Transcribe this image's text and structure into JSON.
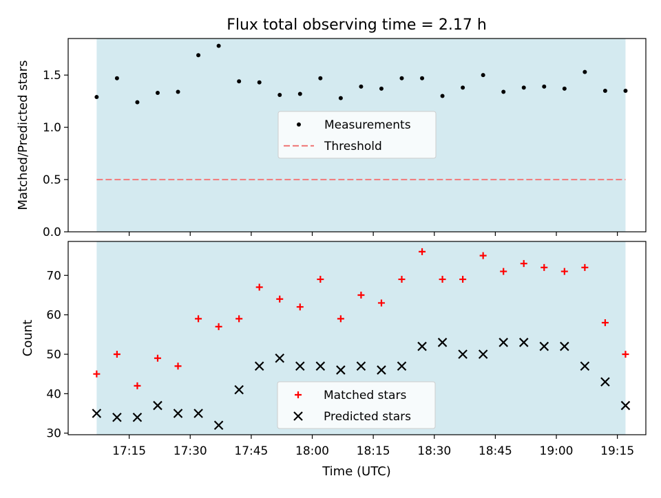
{
  "figure": {
    "title": "Flux total observing time = 2.17 h",
    "xlabel": "Time (UTC)"
  },
  "colors": {
    "observing_band": "#d4eaf0",
    "measurements": "#000000",
    "threshold": "#f08080",
    "matched": "#ff0000",
    "predicted": "#000000"
  },
  "chart_data": [
    {
      "type": "scatter",
      "name": "ratio",
      "ylabel": "Matched/Predicted stars",
      "ylim": [
        0,
        1.85
      ],
      "yticks": [
        0.0,
        0.5,
        1.0,
        1.5
      ],
      "ytick_labels": [
        "0.0",
        "0.5",
        "1.0",
        "1.5"
      ],
      "x": [
        "17:07",
        "17:12",
        "17:17",
        "17:22",
        "17:27",
        "17:32",
        "17:37",
        "17:42",
        "17:47",
        "17:52",
        "17:57",
        "18:02",
        "18:07",
        "18:12",
        "18:17",
        "18:22",
        "18:27",
        "18:32",
        "18:37",
        "18:42",
        "18:47",
        "18:52",
        "18:57",
        "19:02",
        "19:07",
        "19:12",
        "19:17"
      ],
      "series": [
        {
          "name": "Measurements",
          "marker": "dot",
          "values": [
            1.29,
            1.47,
            1.24,
            1.33,
            1.34,
            1.69,
            1.78,
            1.44,
            1.43,
            1.31,
            1.32,
            1.47,
            1.28,
            1.39,
            1.37,
            1.47,
            1.47,
            1.3,
            1.38,
            1.5,
            1.34,
            1.38,
            1.39,
            1.37,
            1.53,
            1.35,
            1.35
          ]
        },
        {
          "name": "Threshold",
          "marker": "dashed-line",
          "value": 0.5
        }
      ],
      "legend": "center",
      "xlim": [
        "17:00",
        "19:22"
      ],
      "xticks": [
        "17:15",
        "17:30",
        "17:45",
        "18:00",
        "18:15",
        "18:30",
        "18:45",
        "19:00",
        "19:15"
      ],
      "band": [
        "17:07",
        "19:17"
      ]
    },
    {
      "type": "scatter",
      "name": "counts",
      "ylabel": "Count",
      "ylim": [
        29.6,
        78.6
      ],
      "yticks": [
        30,
        40,
        50,
        60,
        70
      ],
      "ytick_labels": [
        "30",
        "40",
        "50",
        "60",
        "70"
      ],
      "x": [
        "17:07",
        "17:12",
        "17:17",
        "17:22",
        "17:27",
        "17:32",
        "17:37",
        "17:42",
        "17:47",
        "17:52",
        "17:57",
        "18:02",
        "18:07",
        "18:12",
        "18:17",
        "18:22",
        "18:27",
        "18:32",
        "18:37",
        "18:42",
        "18:47",
        "18:52",
        "18:57",
        "19:02",
        "19:07",
        "19:12",
        "19:17"
      ],
      "series": [
        {
          "name": "Matched stars",
          "marker": "plus",
          "values": [
            45,
            50,
            42,
            49,
            47,
            59,
            57,
            59,
            67,
            64,
            62,
            69,
            59,
            65,
            63,
            69,
            76,
            69,
            69,
            75,
            71,
            73,
            72,
            71,
            72,
            58,
            50
          ]
        },
        {
          "name": "Predicted stars",
          "marker": "x",
          "values": [
            35,
            34,
            34,
            37,
            35,
            35,
            32,
            41,
            47,
            49,
            47,
            47,
            46,
            47,
            46,
            47,
            52,
            53,
            50,
            50,
            53,
            53,
            52,
            52,
            47,
            43,
            37
          ]
        }
      ],
      "legend": "lower center",
      "xlim": [
        "17:00",
        "19:22"
      ],
      "xticks": [
        "17:15",
        "17:30",
        "17:45",
        "18:00",
        "18:15",
        "18:30",
        "18:45",
        "19:00",
        "19:15"
      ],
      "xtick_labels": [
        "17:15",
        "17:30",
        "17:45",
        "18:00",
        "18:15",
        "18:30",
        "18:45",
        "19:00",
        "19:15"
      ],
      "band": [
        "17:07",
        "19:17"
      ]
    }
  ]
}
